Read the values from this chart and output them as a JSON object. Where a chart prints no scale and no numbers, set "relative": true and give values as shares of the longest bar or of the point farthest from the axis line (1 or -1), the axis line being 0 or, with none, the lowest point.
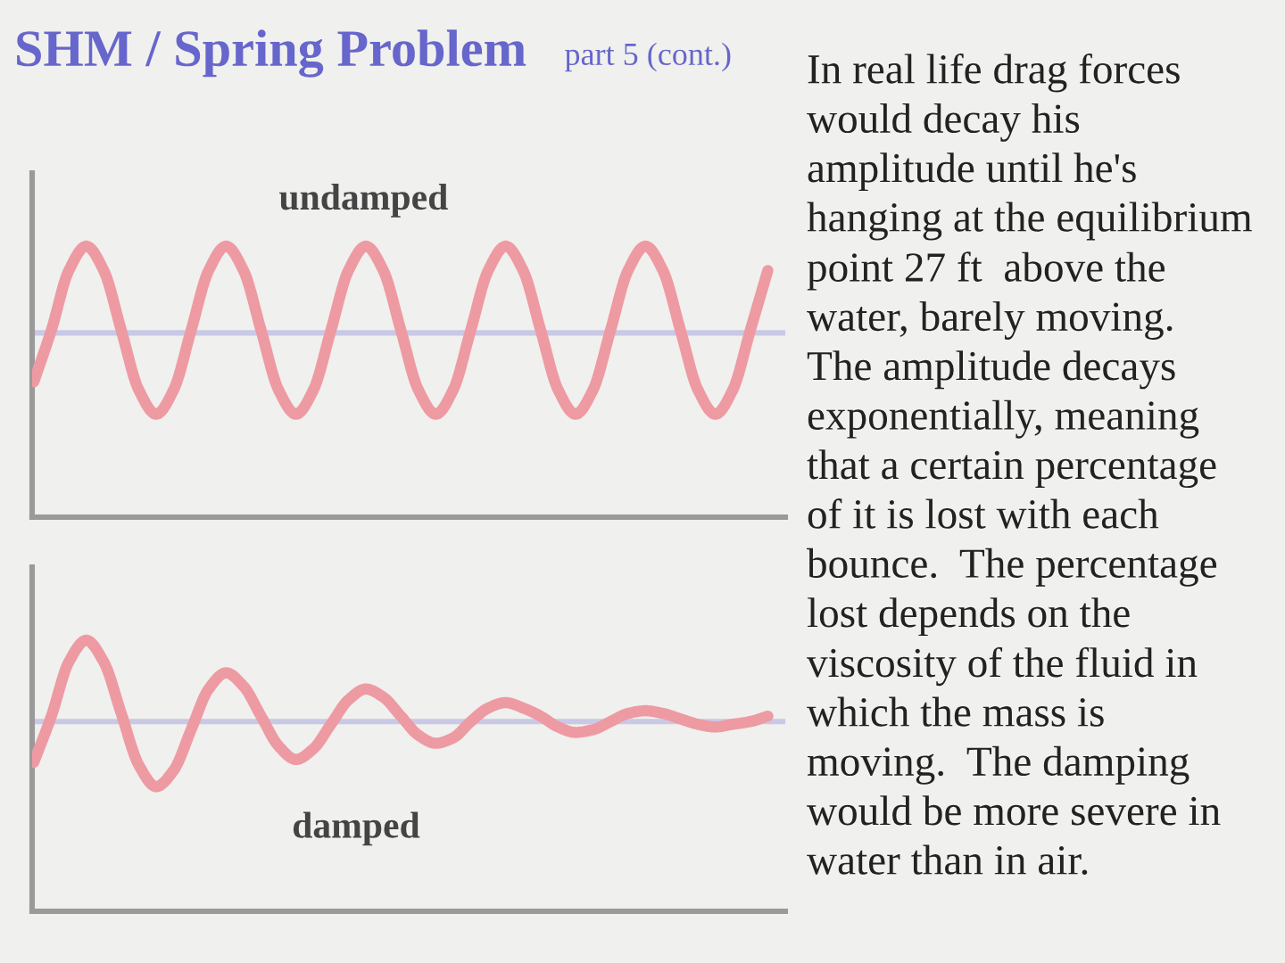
{
  "chart_data": [
    {
      "type": "line",
      "title": "SHM / Spring Problem",
      "subtitle": "part 5 (cont.)",
      "annotations": [
        "undamped"
      ],
      "relative": true,
      "categories": [
        null,
        null,
        null,
        null,
        null,
        null,
        null,
        null,
        null,
        null,
        null,
        null,
        null,
        null,
        null,
        null,
        null,
        null,
        null,
        null,
        null,
        null,
        null,
        null,
        null,
        null,
        null,
        null,
        null,
        null,
        null,
        null,
        null,
        null,
        null,
        null,
        null,
        null,
        null,
        null,
        null,
        null,
        null
      ],
      "series": [
        {
          "color": "#ee9aa2",
          "values": [
            0.5,
            0.69,
            0.91,
            1.0,
            0.91,
            0.69,
            0.47,
            0.38,
            0.47,
            0.69,
            0.91,
            1.0,
            0.91,
            0.69,
            0.47,
            0.38,
            0.47,
            0.69,
            0.91,
            1.0,
            0.91,
            0.69,
            0.47,
            0.38,
            0.47,
            0.69,
            0.91,
            1.0,
            0.91,
            0.69,
            0.47,
            0.38,
            0.47,
            0.69,
            0.91,
            1.0,
            0.91,
            0.69,
            0.47,
            0.38,
            0.47,
            0.69,
            0.91
          ]
        }
      ],
      "ref_lines": [
        {
          "axis": "y",
          "value": 0.68,
          "color": "#c9c9e6"
        }
      ]
    },
    {
      "type": "line",
      "annotations": [
        "damped"
      ],
      "relative": true,
      "categories": [
        null,
        null,
        null,
        null,
        null,
        null,
        null,
        null,
        null,
        null,
        null,
        null,
        null,
        null,
        null,
        null,
        null,
        null,
        null,
        null,
        null,
        null,
        null,
        null,
        null,
        null,
        null,
        null,
        null,
        null,
        null,
        null,
        null,
        null,
        null,
        null,
        null,
        null,
        null,
        null,
        null,
        null,
        null
      ],
      "series": [
        {
          "color": "#ee9aa2",
          "values": [
            0.55,
            0.72,
            0.92,
            1.0,
            0.92,
            0.73,
            0.54,
            0.46,
            0.52,
            0.67,
            0.82,
            0.88,
            0.83,
            0.72,
            0.61,
            0.56,
            0.6,
            0.69,
            0.78,
            0.82,
            0.79,
            0.72,
            0.65,
            0.62,
            0.64,
            0.7,
            0.75,
            0.77,
            0.75,
            0.72,
            0.68,
            0.66,
            0.67,
            0.7,
            0.73,
            0.74,
            0.73,
            0.71,
            0.69,
            0.68,
            0.69,
            0.7,
            0.72
          ]
        }
      ],
      "ref_lines": [
        {
          "axis": "y",
          "value": 0.7,
          "color": "#c9c9e6"
        }
      ]
    },
    {
      "type": "other",
      "annotations": [
        "In real life drag forces\nwould decay his\namplitude until he's\nhanging at the equilibrium\npoint 27 ft  above the\nwater, barely moving.\nThe amplitude decays\nexponentially, meaning\nthat a certain percentage\nof it is lost with each\nbounce.  The percentage\nlost depends on the\nviscosity of the fluid in\nwhich the mass is\nmoving.  The damping\nwould be more severe in\nwater than in air."
      ]
    }
  ]
}
